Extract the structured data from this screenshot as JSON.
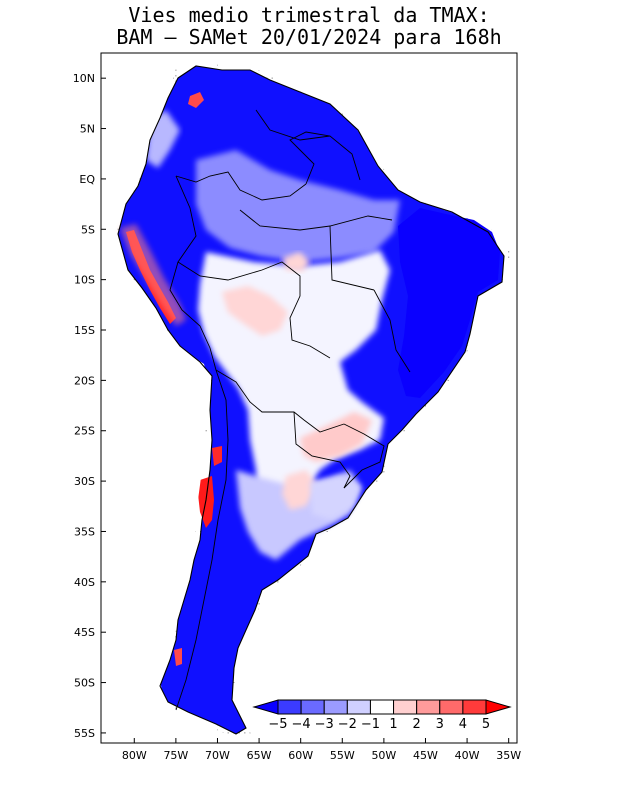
{
  "title": {
    "line1": "Vies medio trimestral da TMAX:",
    "line2": "BAM – SAMet 20/01/2024  para 168h"
  },
  "axes": {
    "lat_labels": [
      "10N",
      "5N",
      "EQ",
      "5S",
      "10S",
      "15S",
      "20S",
      "25S",
      "30S",
      "35S",
      "40S",
      "45S",
      "50S",
      "55S"
    ],
    "lat_values": [
      10,
      5,
      0,
      -5,
      -10,
      -15,
      -20,
      -25,
      -30,
      -35,
      -40,
      -45,
      -50,
      -55
    ],
    "lon_labels": [
      "80W",
      "75W",
      "70W",
      "65W",
      "60W",
      "55W",
      "50W",
      "45W",
      "40W",
      "35W"
    ],
    "lon_values": [
      -80,
      -75,
      -70,
      -65,
      -60,
      -55,
      -50,
      -45,
      -40,
      -35
    ],
    "lat_range": [
      -56,
      12.5
    ],
    "lon_range": [
      -84,
      -34
    ],
    "grid": true
  },
  "colorbar": {
    "labels": [
      "−5",
      "−4",
      "−3",
      "−2",
      "−1",
      "1",
      "2",
      "3",
      "4",
      "5"
    ],
    "colors": [
      "#0a00ff",
      "#3b3bff",
      "#6a6aff",
      "#9b9bff",
      "#d0d0ff",
      "#ffffff",
      "#ffd0d0",
      "#ff9b9b",
      "#ff6a6a",
      "#ff3b3b",
      "#ff0000"
    ],
    "arrow_left_color": "#0a00ff",
    "arrow_right_color": "#ff0000"
  },
  "palette": {
    "strong_blue": "#0a00ff",
    "mid_blue": "#5a5aff",
    "light_blue": "#c8c8ff",
    "white": "#ffffff",
    "light_red": "#ffd0d0",
    "red": "#ff2020"
  }
}
